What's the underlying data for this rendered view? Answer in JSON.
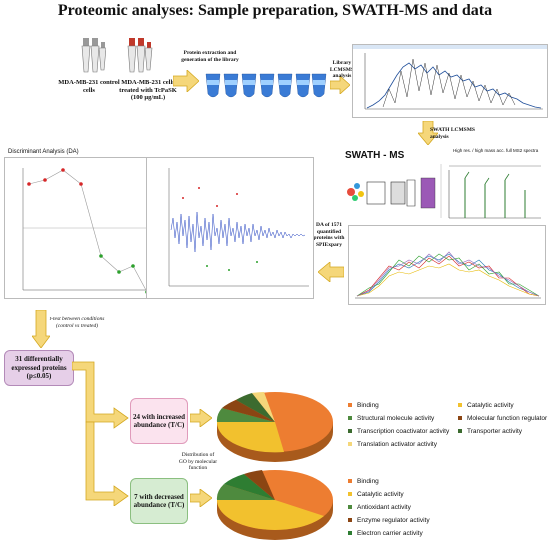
{
  "title": "Proteomic analyses: Sample preparation, SWATH-MS and data",
  "step1": {
    "control_label": "MDA-MB-231 control cells",
    "treated_label": "MDA-MB-231 cells treated with TcPaSK (100 µg/mL)",
    "extraction_label": "Protein extraction and generation of the library",
    "library_label": "Library LCMSMS analysis"
  },
  "swath": {
    "analysis_label": "SWATH LCMSMS analysis",
    "panel_title": "SWATH - MS",
    "spectra_label": "High res. / high mass acc. full MS2 spectra"
  },
  "da": {
    "title": "Discriminant Analysis (DA)",
    "quantified_label": "DA of 1571 quantified proteins with SPIExpary"
  },
  "ttest": {
    "label": "t-test between conditions (control vs treated)"
  },
  "summary": {
    "label": "31 differentially expressed proteins (p≤0.05)"
  },
  "increased": {
    "label": "24 with increased abundance (T/C)",
    "legend_left": [
      "Binding",
      "Structural molecule activity",
      "Transcription coactivator activity",
      "Translation activator activity"
    ],
    "legend_right": [
      "Catalytic activity",
      "Molecular function regulator",
      "Transporter activity"
    ]
  },
  "decreased": {
    "label": "7 with decreased abundance (T/C)",
    "legend": [
      "Binding",
      "Catalytic activity",
      "Antioxidant activity",
      "Enzyme regulator activity",
      "Electron carrier activity"
    ]
  },
  "go_label": "Distribution of GO by molecular function",
  "colors": {
    "orange": "#ed7d31",
    "yellow": "#f2c12e",
    "green": "#4e8a3e",
    "brown": "#8b4513",
    "pink_box": "#fbe3ee",
    "purple_box": "#e6cfe8",
    "green_box": "#d6ecd2",
    "arrow": "#f5d77a"
  },
  "icons": [
    "tube-icon",
    "gel-icon",
    "arrow-icon",
    "pie-chart-icon"
  ]
}
